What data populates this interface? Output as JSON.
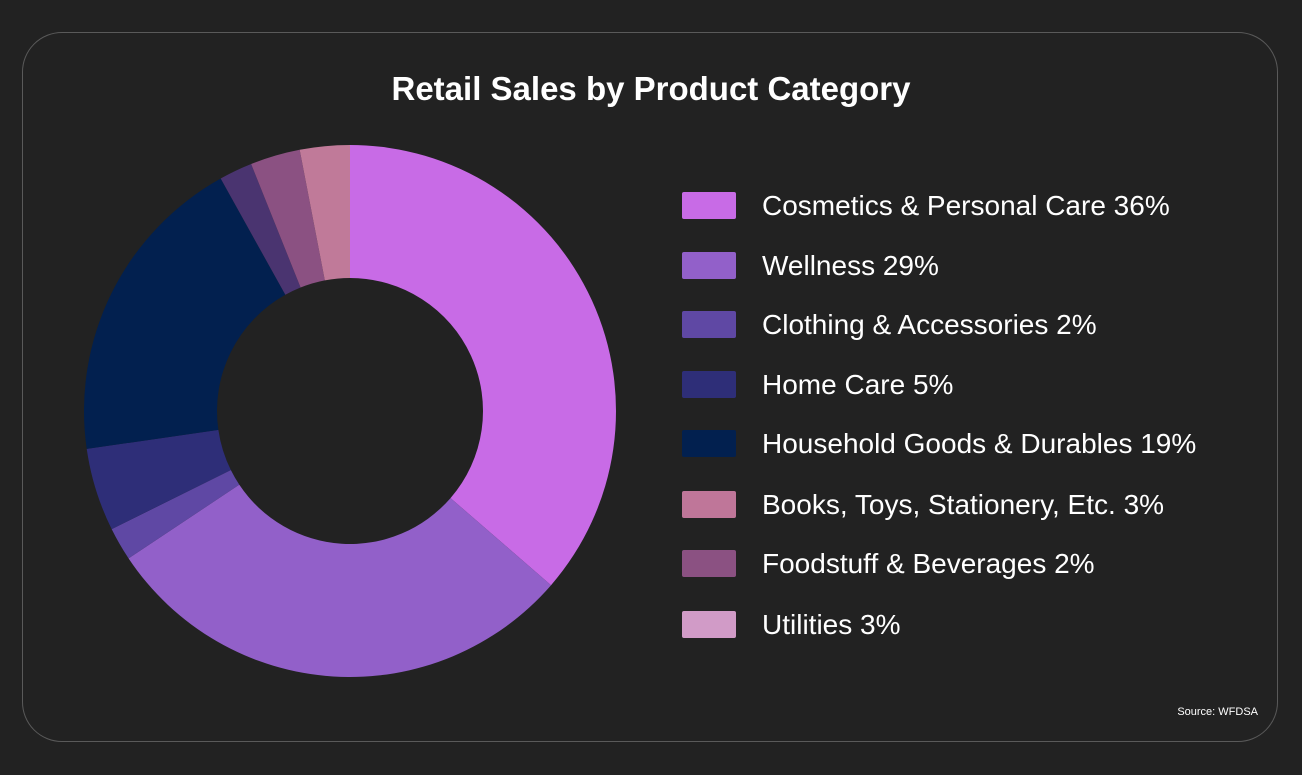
{
  "chart_data": {
    "type": "pie",
    "title": "Retail Sales by Product Category",
    "source": "Source: WFDSA",
    "legend_position": "right",
    "hole": 0.5,
    "series": [
      {
        "label": "Cosmetics & Personal Care 36%",
        "value": 36,
        "color": "#c86be6"
      },
      {
        "label": "Wellness 29%",
        "value": 29,
        "color": "#9260c9"
      },
      {
        "label": "Clothing & Accessories 2%",
        "value": 2,
        "color": "#5f48a4"
      },
      {
        "label": "Home Care 5%",
        "value": 5,
        "color": "#2e2e78"
      },
      {
        "label": "Household Goods & Durables 19%",
        "value": 19,
        "color": "#02204f"
      },
      {
        "label": "Books, Toys, Stationery, Etc. 3%",
        "value": 3,
        "color": "#bf7699"
      },
      {
        "label": "Foodstuff & Beverages 2%",
        "value": 2,
        "color": "#8b5182"
      },
      {
        "label": "Utilities 3%",
        "value": 3,
        "color": "#d19bc7"
      }
    ],
    "slice_order": [
      0,
      1,
      2,
      3,
      4,
      6,
      7,
      5
    ],
    "slice_colors": [
      "#c86be6",
      "#9260c9",
      "#5f48a4",
      "#2e2e78",
      "#02204f",
      "#4a3470",
      "#8b5182",
      "#c07a99"
    ]
  }
}
